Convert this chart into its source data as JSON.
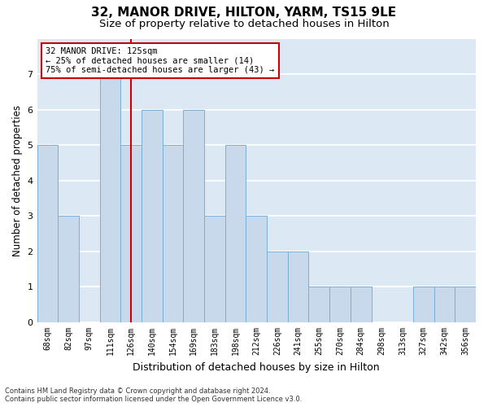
{
  "title": "32, MANOR DRIVE, HILTON, YARM, TS15 9LE",
  "subtitle": "Size of property relative to detached houses in Hilton",
  "xlabel": "Distribution of detached houses by size in Hilton",
  "ylabel": "Number of detached properties",
  "categories": [
    "68sqm",
    "82sqm",
    "97sqm",
    "111sqm",
    "126sqm",
    "140sqm",
    "154sqm",
    "169sqm",
    "183sqm",
    "198sqm",
    "212sqm",
    "226sqm",
    "241sqm",
    "255sqm",
    "270sqm",
    "284sqm",
    "298sqm",
    "313sqm",
    "327sqm",
    "342sqm",
    "356sqm"
  ],
  "values": [
    5,
    3,
    0,
    7,
    5,
    6,
    5,
    6,
    3,
    5,
    3,
    2,
    2,
    1,
    1,
    1,
    0,
    0,
    1,
    1,
    1
  ],
  "bar_color": "#c9d9ec",
  "bar_edge_color": "#7aafd4",
  "vline_x_index": 4,
  "vline_color": "#cc0000",
  "annotation_text": "32 MANOR DRIVE: 125sqm\n← 25% of detached houses are smaller (14)\n75% of semi-detached houses are larger (43) →",
  "annotation_box_color": "#cc0000",
  "ylim": [
    0,
    8
  ],
  "yticks": [
    0,
    1,
    2,
    3,
    4,
    5,
    6,
    7,
    8
  ],
  "background_color": "#dce9f5",
  "grid_color": "#ffffff",
  "footer_line1": "Contains HM Land Registry data © Crown copyright and database right 2024.",
  "footer_line2": "Contains public sector information licensed under the Open Government Licence v3.0.",
  "title_fontsize": 11,
  "subtitle_fontsize": 9.5,
  "xlabel_fontsize": 9,
  "ylabel_fontsize": 8.5,
  "annotation_fontsize": 7.5,
  "tick_fontsize": 7
}
